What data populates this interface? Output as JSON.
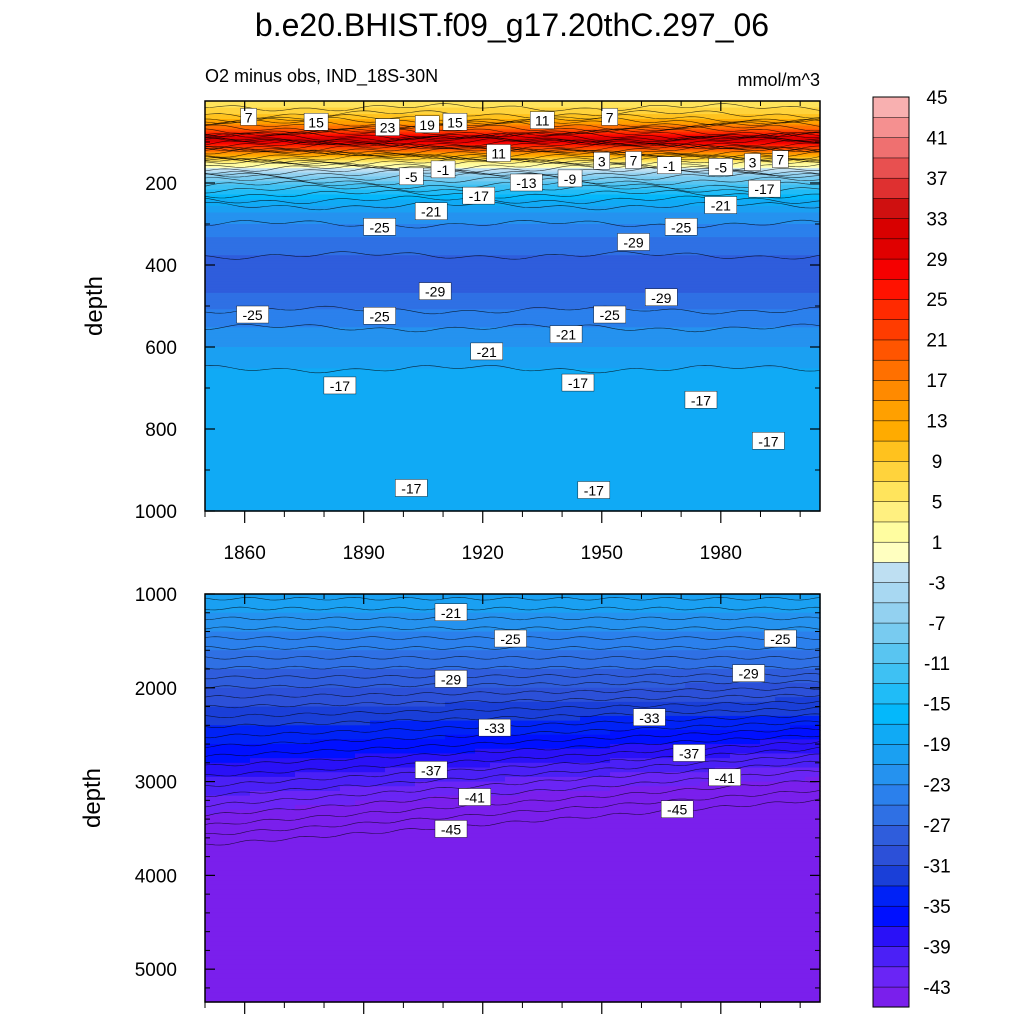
{
  "title": "b.e20.BHIST.f09_g17.20thC.297_06",
  "chart_data": {
    "type": "heatmap",
    "subtitle_left": "O2 minus obs, IND_18S-30N",
    "subtitle_right": "mmol/m^3",
    "colorbar": {
      "levels": [
        -45,
        -43,
        -41,
        -39,
        -37,
        -35,
        -33,
        -31,
        -29,
        -27,
        -25,
        -23,
        -21,
        -19,
        -17,
        -15,
        -13,
        -11,
        -9,
        -7,
        -5,
        -3,
        -1,
        1,
        3,
        5,
        7,
        9,
        11,
        13,
        15,
        17,
        19,
        21,
        23,
        25,
        27,
        29,
        31,
        33,
        35,
        37,
        39,
        41,
        43,
        45
      ],
      "tick_labels": [
        "45",
        "41",
        "37",
        "33",
        "29",
        "25",
        "21",
        "17",
        "13",
        "9",
        "5",
        "1",
        "-3",
        "-7",
        "-11",
        "-15",
        "-19",
        "-23",
        "-27",
        "-31",
        "-35",
        "-39",
        "-43"
      ],
      "colors": [
        "#7a1fec",
        "#6a25f5",
        "#4b20f6",
        "#2a11f7",
        "#0010ff",
        "#0022f6",
        "#1a3fd8",
        "#2c50d8",
        "#2f5ddc",
        "#2f70e4",
        "#2b80ec",
        "#2592ef",
        "#1aa0f2",
        "#10aaf5",
        "#04b8fb",
        "#20bcf7",
        "#3ec1f3",
        "#59c5f1",
        "#78cbf0",
        "#93d1f0",
        "#a8d8f2",
        "#bedff2",
        "#ffffc0",
        "#fffda0",
        "#fff080",
        "#ffe45c",
        "#ffd33c",
        "#ffc21e",
        "#ffab00",
        "#ffa000",
        "#ff8a00",
        "#ff7000",
        "#ff5500",
        "#ff3c00",
        "#ff2a00",
        "#ff1200",
        "#f50000",
        "#e00000",
        "#d80000",
        "#cf1010",
        "#df3030",
        "#e85050",
        "#ef7070",
        "#f59090",
        "#f8b0b0"
      ]
    },
    "top_panel": {
      "ylabel": "depth",
      "xlabel": "",
      "xlim": [
        1850,
        2005
      ],
      "ylim": [
        1000,
        0
      ],
      "x_ticks": [
        "1860",
        "1890",
        "1920",
        "1950",
        "1980"
      ],
      "y_ticks": [
        "200",
        "400",
        "600",
        "800",
        "1000"
      ],
      "profile": [
        {
          "depth": 0,
          "value": 5
        },
        {
          "depth": 40,
          "value": 10
        },
        {
          "depth": 75,
          "value": 22
        },
        {
          "depth": 95,
          "value": 32
        },
        {
          "depth": 120,
          "value": 18
        },
        {
          "depth": 150,
          "value": 4
        },
        {
          "depth": 180,
          "value": -6
        },
        {
          "depth": 220,
          "value": -14
        },
        {
          "depth": 270,
          "value": -21
        },
        {
          "depth": 330,
          "value": -25
        },
        {
          "depth": 400,
          "value": -28
        },
        {
          "depth": 470,
          "value": -27
        },
        {
          "depth": 530,
          "value": -24
        },
        {
          "depth": 600,
          "value": -21
        },
        {
          "depth": 680,
          "value": -18
        },
        {
          "depth": 800,
          "value": -17
        },
        {
          "depth": 1000,
          "value": -18
        }
      ],
      "contour_labels": [
        {
          "x": 1861,
          "depth": 40,
          "text": "7"
        },
        {
          "x": 1878,
          "depth": 52,
          "text": "15"
        },
        {
          "x": 1896,
          "depth": 65,
          "text": "23"
        },
        {
          "x": 1906,
          "depth": 58,
          "text": "19"
        },
        {
          "x": 1913,
          "depth": 52,
          "text": "15"
        },
        {
          "x": 1935,
          "depth": 48,
          "text": "11"
        },
        {
          "x": 1952,
          "depth": 40,
          "text": "7"
        },
        {
          "x": 1924,
          "depth": 128,
          "text": "11"
        },
        {
          "x": 1950,
          "depth": 147,
          "text": "3"
        },
        {
          "x": 1958,
          "depth": 145,
          "text": "7"
        },
        {
          "x": 1967,
          "depth": 158,
          "text": "-1"
        },
        {
          "x": 1988,
          "depth": 150,
          "text": "3"
        },
        {
          "x": 1995,
          "depth": 143,
          "text": "7"
        },
        {
          "x": 1902,
          "depth": 185,
          "text": "-5"
        },
        {
          "x": 1910,
          "depth": 168,
          "text": "-1"
        },
        {
          "x": 1942,
          "depth": 190,
          "text": "-9"
        },
        {
          "x": 1980,
          "depth": 162,
          "text": "-5"
        },
        {
          "x": 1931,
          "depth": 200,
          "text": "-13"
        },
        {
          "x": 1919,
          "depth": 232,
          "text": "-17"
        },
        {
          "x": 1991,
          "depth": 215,
          "text": "-17"
        },
        {
          "x": 1907,
          "depth": 270,
          "text": "-21"
        },
        {
          "x": 1980,
          "depth": 255,
          "text": "-21"
        },
        {
          "x": 1894,
          "depth": 308,
          "text": "-25"
        },
        {
          "x": 1970,
          "depth": 308,
          "text": "-25"
        },
        {
          "x": 1958,
          "depth": 345,
          "text": "-29"
        },
        {
          "x": 1908,
          "depth": 465,
          "text": "-29"
        },
        {
          "x": 1965,
          "depth": 480,
          "text": "-29"
        },
        {
          "x": 1862,
          "depth": 522,
          "text": "-25"
        },
        {
          "x": 1894,
          "depth": 525,
          "text": "-25"
        },
        {
          "x": 1952,
          "depth": 522,
          "text": "-25"
        },
        {
          "x": 1941,
          "depth": 570,
          "text": "-21"
        },
        {
          "x": 1921,
          "depth": 612,
          "text": "-21"
        },
        {
          "x": 1884,
          "depth": 695,
          "text": "-17"
        },
        {
          "x": 1944,
          "depth": 688,
          "text": "-17"
        },
        {
          "x": 1975,
          "depth": 730,
          "text": "-17"
        },
        {
          "x": 1992,
          "depth": 830,
          "text": "-17"
        },
        {
          "x": 1902,
          "depth": 945,
          "text": "-17"
        },
        {
          "x": 1948,
          "depth": 950,
          "text": "-17"
        }
      ]
    },
    "bottom_panel": {
      "ylabel": "depth",
      "xlabel": "",
      "xlim": [
        1850,
        2005
      ],
      "ylim": [
        5350,
        1000
      ],
      "y_ticks": [
        "1000",
        "2000",
        "3000",
        "4000",
        "5000"
      ],
      "contour_labels": [
        {
          "x": 1912,
          "depth": 1200,
          "text": "-21"
        },
        {
          "x": 1927,
          "depth": 1480,
          "text": "-25"
        },
        {
          "x": 1995,
          "depth": 1480,
          "text": "-25"
        },
        {
          "x": 1912,
          "depth": 1910,
          "text": "-29"
        },
        {
          "x": 1987,
          "depth": 1850,
          "text": "-29"
        },
        {
          "x": 1923,
          "depth": 2430,
          "text": "-33"
        },
        {
          "x": 1962,
          "depth": 2320,
          "text": "-33"
        },
        {
          "x": 1907,
          "depth": 2880,
          "text": "-37"
        },
        {
          "x": 1972,
          "depth": 2700,
          "text": "-37"
        },
        {
          "x": 1918,
          "depth": 3170,
          "text": "-41"
        },
        {
          "x": 1981,
          "depth": 2960,
          "text": "-41"
        },
        {
          "x": 1912,
          "depth": 3510,
          "text": "-45"
        },
        {
          "x": 1969,
          "depth": 3300,
          "text": "-45"
        }
      ]
    }
  }
}
